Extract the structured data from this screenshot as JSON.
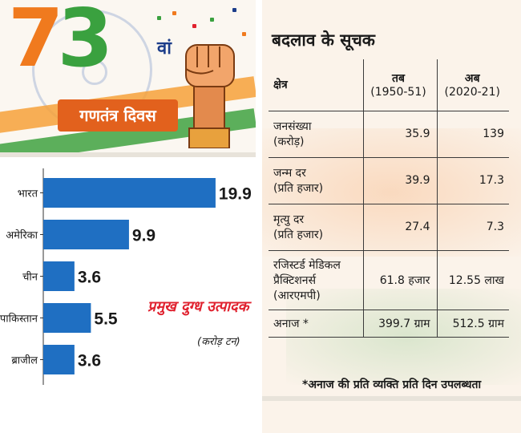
{
  "banner": {
    "number_first": "7",
    "number_second": "3",
    "number_suffix": "वां",
    "title": "गणतंत्र दिवस"
  },
  "milk_chart": {
    "title": "प्रमुख दुग्ध उत्पादक",
    "unit": "(करोड़ टन)",
    "colors": {
      "bar": "#1f6fc2",
      "title": "#e0212e"
    }
  },
  "chart_data": {
    "type": "bar",
    "orientation": "horizontal",
    "title": "प्रमुख दुग्ध उत्पादक",
    "xlabel": "",
    "ylabel": "",
    "unit": "(करोड़ टन)",
    "categories": [
      "भारत",
      "अमेरिका",
      "चीन",
      "पाकिस्तान",
      "ब्राजील"
    ],
    "values": [
      19.9,
      9.9,
      3.6,
      5.5,
      3.6
    ],
    "value_labels": [
      "19.9",
      "9.9",
      "3.6",
      "5.5",
      "3.6"
    ],
    "xlim": [
      0,
      20
    ],
    "grid": false,
    "bar_color": "#1f6fc2"
  },
  "indicators": {
    "title": "बदलाव के सूचक",
    "header": {
      "col1": "क्षेत्र",
      "col2_title": "तब",
      "col2_years": "(1950-51)",
      "col3_title": "अब",
      "col3_years": "(2020-21)"
    },
    "rows": [
      {
        "label_line1": "जनसंख्या",
        "label_line2": "(करोड़)",
        "label_line3": "",
        "then": "35.9",
        "now": "139"
      },
      {
        "label_line1": "जन्म दर",
        "label_line2": "(प्रति हजार)",
        "label_line3": "",
        "then": "39.9",
        "now": "17.3"
      },
      {
        "label_line1": "मृत्यु दर",
        "label_line2": "(प्रति हजार)",
        "label_line3": "",
        "then": "27.4",
        "now": "7.3"
      },
      {
        "label_line1": "रजिस्टर्ड मेडिकल",
        "label_line2": "प्रैक्टिशनर्स",
        "label_line3": "(आरएमपी)",
        "then": "61.8 हजार",
        "now": "12.55 लाख"
      },
      {
        "label_line1": "अनाज *",
        "label_line2": "",
        "label_line3": "",
        "then": "399.7 ग्राम",
        "now": "512.5 ग्राम"
      }
    ],
    "footnote": "*अनाज की प्रति व्यक्ति प्रति दिन उपलब्धता"
  }
}
